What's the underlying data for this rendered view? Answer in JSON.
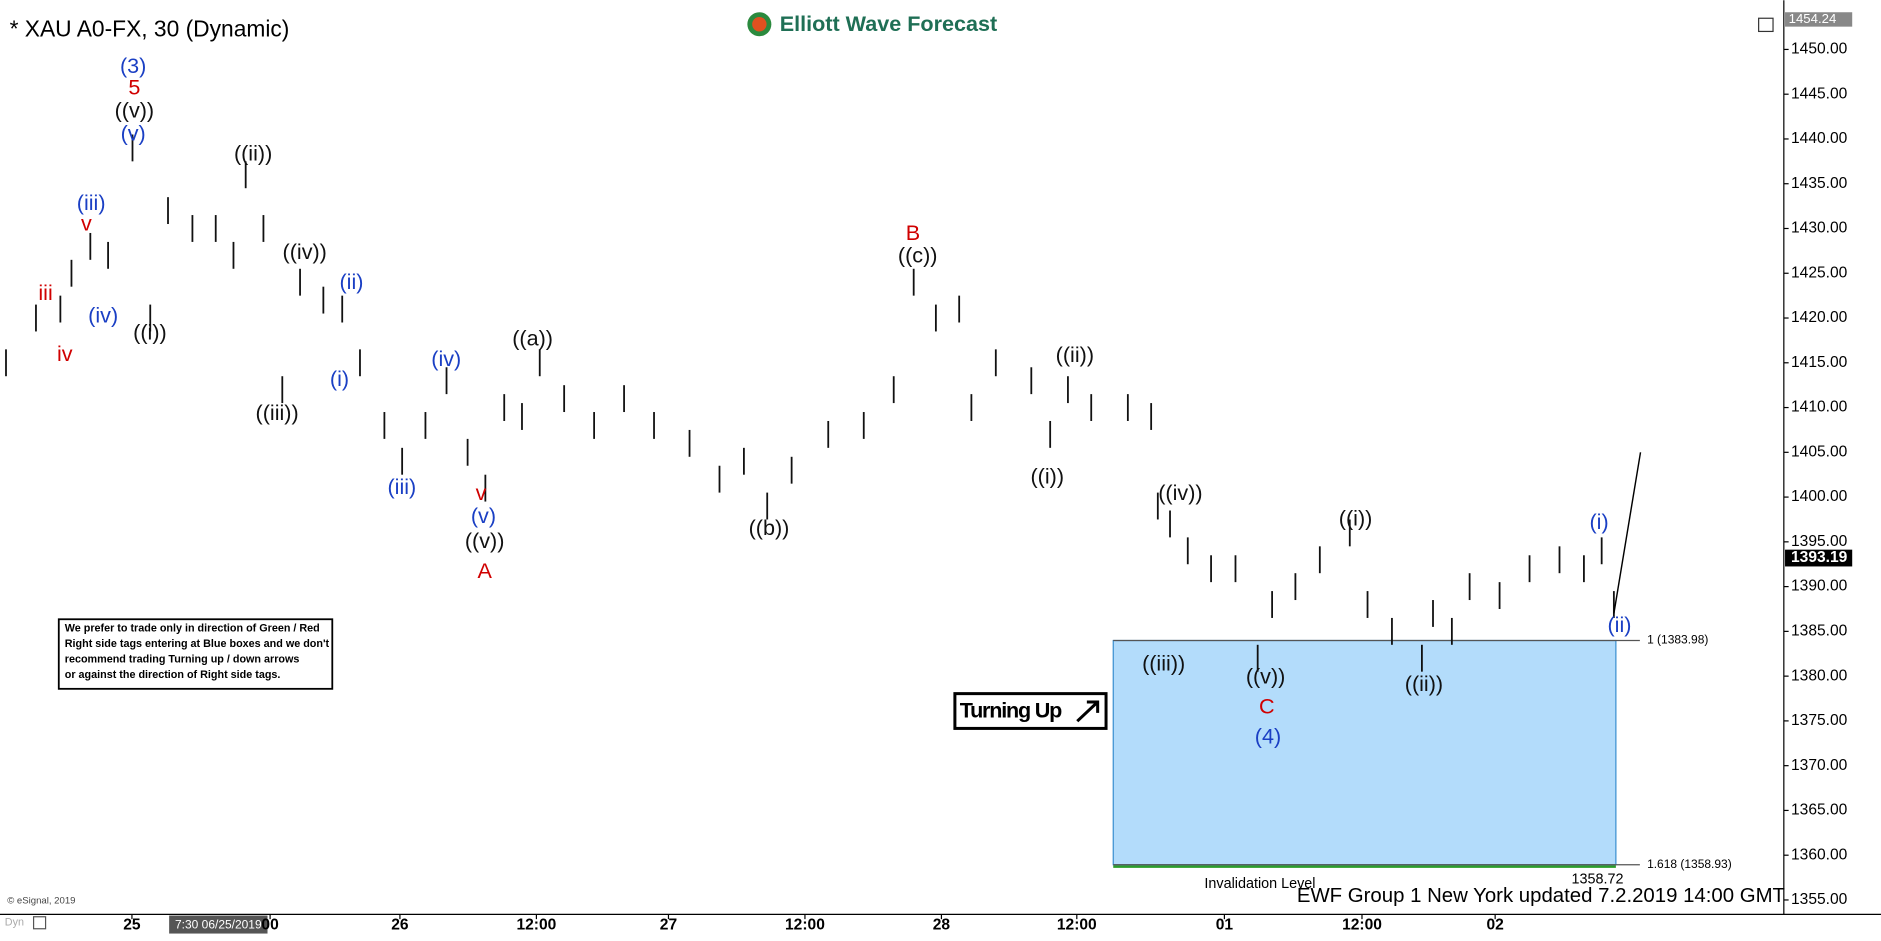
{
  "chart_data": {
    "type": "ohlc",
    "title": "* XAU A0-FX, 30 (Dynamic)",
    "brand": "Elliott Wave Forecast",
    "footer": "EWF Group 1 New York updated 7.2.2019 14:00 GMT",
    "copyright": "© eSignal, 2019",
    "cursor_time": "7:30 06/25/2019",
    "corner_text": "Dyn",
    "note": [
      "We prefer to trade only in direction of Green / Red",
      "Right side tags entering at Blue boxes and we don't",
      "recommend trading Turning up / down arrows",
      "or against the direction of Right side tags."
    ],
    "badge": "Turning Up",
    "invalidation_label": "Invalidation Level",
    "invalidation_value": {
      "value": 1358.72,
      "label": "1358.72"
    },
    "top_price": {
      "value": 1454.24,
      "label": "1454.24"
    },
    "last_price": {
      "value": 1393.19,
      "label": "1393.19"
    },
    "fib_levels": [
      {
        "value": 1383.98,
        "label": "1 (1383.98)"
      },
      {
        "value": 1358.93,
        "label": "1.618 (1358.93)"
      }
    ],
    "box_color": "#b3dcfb",
    "ylim": [
      1354,
      1455
    ],
    "yticks": [
      {
        "value": 1355,
        "label": "1355.00"
      },
      {
        "value": 1360,
        "label": "1360.00"
      },
      {
        "value": 1365,
        "label": "1365.00"
      },
      {
        "value": 1370,
        "label": "1370.00"
      },
      {
        "value": 1375,
        "label": "1375.00"
      },
      {
        "value": 1380,
        "label": "1380.00"
      },
      {
        "value": 1385,
        "label": "1385.00"
      },
      {
        "value": 1390,
        "label": "1390.00"
      },
      {
        "value": 1395,
        "label": "1395.00"
      },
      {
        "value": 1400,
        "label": "1400.00"
      },
      {
        "value": 1405,
        "label": "1405.00"
      },
      {
        "value": 1410,
        "label": "1410.00"
      },
      {
        "value": 1415,
        "label": "1415.00"
      },
      {
        "value": 1420,
        "label": "1420.00"
      },
      {
        "value": 1425,
        "label": "1425.00"
      },
      {
        "value": 1430,
        "label": "1430.00"
      },
      {
        "value": 1435,
        "label": "1435.00"
      },
      {
        "value": 1440,
        "label": "1440.00"
      },
      {
        "value": 1445,
        "label": "1445.00"
      },
      {
        "value": 1450,
        "label": "1450.00"
      }
    ],
    "xlim": [
      0,
      160
    ],
    "xticks": [
      {
        "value": 11.35,
        "label": "25"
      },
      {
        "value": 23.8,
        "label": "00"
      },
      {
        "value": 35.5,
        "label": "26"
      },
      {
        "value": 47.8,
        "label": "12:00"
      },
      {
        "value": 59.7,
        "label": "27"
      },
      {
        "value": 72.0,
        "label": "12:00"
      },
      {
        "value": 84.3,
        "label": "28"
      },
      {
        "value": 96.5,
        "label": "12:00"
      },
      {
        "value": 109.8,
        "label": "01"
      },
      {
        "value": 122.2,
        "label": "12:00"
      },
      {
        "value": 134.2,
        "label": "02"
      }
    ],
    "series": [
      {
        "color": "#111111",
        "x": [
          0,
          2.7,
          4.9,
          5.9,
          7.6,
          9.2,
          11.4,
          13.0,
          14.6,
          16.8,
          18.9,
          20.5,
          21.6,
          23.2,
          24.9,
          26.5,
          28.6,
          30.3,
          31.9,
          34.1,
          35.7,
          37.8,
          39.7,
          41.6,
          43.2,
          44.9,
          46.5,
          48.1,
          50.3,
          53.0,
          55.7,
          58.4,
          61.6,
          64.3,
          66.5,
          68.6,
          70.8,
          74.1,
          77.3,
          80.0,
          81.8,
          83.8,
          85.9,
          87.0,
          89.2,
          92.4,
          94.1,
          95.7,
          97.8,
          101.1,
          103.2,
          103.8,
          104.9,
          106.5,
          108.6,
          110.8,
          112.8,
          114.1,
          116.2,
          118.4,
          121.1,
          122.7,
          124.9,
          127.6,
          128.6,
          130.3,
          131.9,
          134.6,
          137.3,
          140.0,
          142.2,
          143.8,
          144.9
        ],
        "high": [
          1416.5,
          1421.5,
          1422.5,
          1426.5,
          1429.5,
          1428.5,
          1440.5,
          1421.5,
          1433.5,
          1431.5,
          1431.5,
          1428.5,
          1437.5,
          1431.5,
          1413.5,
          1425.5,
          1423.5,
          1422.5,
          1416.5,
          1409.5,
          1405.5,
          1409.5,
          1414.5,
          1406.5,
          1402.5,
          1411.5,
          1410.5,
          1416.5,
          1412.5,
          1409.5,
          1412.5,
          1409.5,
          1407.5,
          1403.5,
          1405.5,
          1400.5,
          1404.5,
          1408.5,
          1409.5,
          1413.5,
          1425.5,
          1421.5,
          1422.5,
          1411.5,
          1416.5,
          1414.5,
          1408.5,
          1413.5,
          1411.5,
          1411.5,
          1410.5,
          1400.5,
          1398.5,
          1395.5,
          1393.5,
          1393.5,
          1383.5,
          1389.5,
          1391.5,
          1394.5,
          1397.5,
          1389.5,
          1386.5,
          1383.5,
          1388.5,
          1386.5,
          1391.5,
          1390.5,
          1393.5,
          1394.5,
          1393.5,
          1395.5,
          1389.5
        ],
        "low": [
          1413.5,
          1418.5,
          1419.5,
          1423.5,
          1426.5,
          1425.5,
          1437.5,
          1418.5,
          1430.5,
          1428.5,
          1428.5,
          1425.5,
          1434.5,
          1428.5,
          1410.5,
          1422.5,
          1420.5,
          1419.5,
          1413.5,
          1406.5,
          1402.5,
          1406.5,
          1411.5,
          1403.5,
          1399.5,
          1408.5,
          1407.5,
          1413.5,
          1409.5,
          1406.5,
          1409.5,
          1406.5,
          1404.5,
          1400.5,
          1402.5,
          1397.5,
          1401.5,
          1405.5,
          1406.5,
          1410.5,
          1422.5,
          1418.5,
          1419.5,
          1408.5,
          1413.5,
          1411.5,
          1405.5,
          1410.5,
          1408.5,
          1408.5,
          1407.5,
          1397.5,
          1395.5,
          1392.5,
          1390.5,
          1390.5,
          1380.5,
          1386.5,
          1388.5,
          1391.5,
          1394.5,
          1386.5,
          1383.5,
          1380.5,
          1385.5,
          1383.5,
          1388.5,
          1387.5,
          1390.5,
          1391.5,
          1390.5,
          1392.5,
          1386.5
        ]
      }
    ],
    "projection": {
      "x": [
        144.9,
        147.3
      ],
      "values": [
        1387,
        1405
      ]
    },
    "annotations": [
      {
        "text": "(3)",
        "color": "#1a3fc4"
      },
      {
        "text": "5",
        "color": "#d00000"
      },
      {
        "text": "((v))",
        "color": "#111111"
      },
      {
        "text": "(v)",
        "color": "#1a3fc4"
      },
      {
        "text": "((ii))",
        "color": "#111111"
      },
      {
        "text": "(iii)",
        "color": "#1a3fc4"
      },
      {
        "text": "v",
        "color": "#d00000"
      },
      {
        "text": "iii",
        "color": "#d00000"
      },
      {
        "text": "iv",
        "color": "#d00000"
      },
      {
        "text": "(iv)",
        "color": "#1a3fc4"
      },
      {
        "text": "((i))",
        "color": "#111111"
      },
      {
        "text": "((iv))",
        "color": "#111111"
      },
      {
        "text": "(ii)",
        "color": "#1a3fc4"
      },
      {
        "text": "(i)",
        "color": "#1a3fc4"
      },
      {
        "text": "((iii))",
        "color": "#111111"
      },
      {
        "text": "(iv)",
        "color": "#1a3fc4"
      },
      {
        "text": "(iii)",
        "color": "#1a3fc4"
      },
      {
        "text": "v",
        "color": "#d00000"
      },
      {
        "text": "(v)",
        "color": "#1a3fc4"
      },
      {
        "text": "((v))",
        "color": "#111111"
      },
      {
        "text": "A",
        "color": "#d00000"
      },
      {
        "text": "((a))",
        "color": "#111111"
      },
      {
        "text": "((b))",
        "color": "#111111"
      },
      {
        "text": "B",
        "color": "#d00000"
      },
      {
        "text": "((c))",
        "color": "#111111"
      },
      {
        "text": "((ii))",
        "color": "#111111"
      },
      {
        "text": "((i))",
        "color": "#111111"
      },
      {
        "text": "((iv))",
        "color": "#111111"
      },
      {
        "text": "((iii))",
        "color": "#111111"
      },
      {
        "text": "((v))",
        "color": "#111111"
      },
      {
        "text": "C",
        "color": "#d00000"
      },
      {
        "text": "(4)",
        "color": "#1a3fc4"
      },
      {
        "text": "((i))",
        "color": "#111111"
      },
      {
        "text": "((ii))",
        "color": "#111111"
      },
      {
        "text": "(i)",
        "color": "#1a3fc4"
      },
      {
        "text": "(ii)",
        "color": "#1a3fc4"
      }
    ]
  }
}
